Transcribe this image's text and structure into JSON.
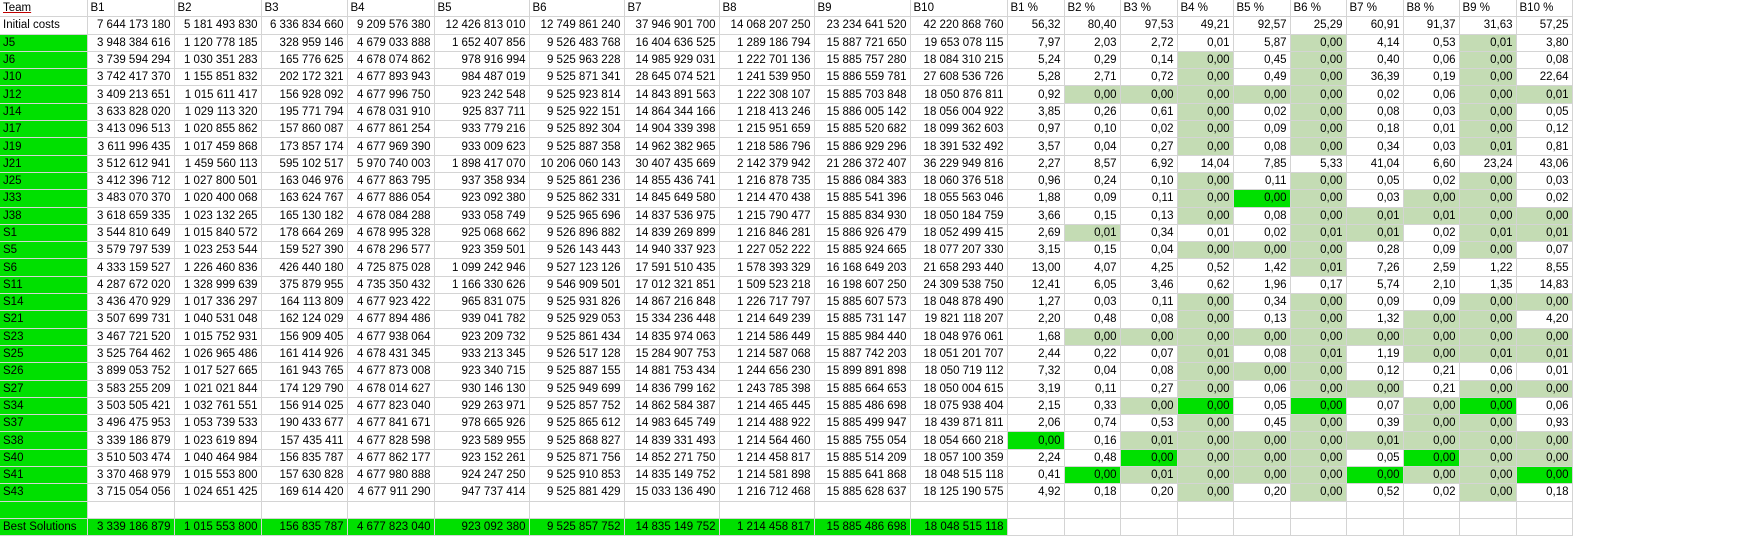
{
  "headers": [
    "Team",
    "B1",
    "B2",
    "B3",
    "B4",
    "B5",
    "B6",
    "B7",
    "B8",
    "B9",
    "B10",
    "B1 %",
    "B2 %",
    "B3 %",
    "B4 %",
    "B5 %",
    "B6 %",
    "B7 %",
    "B8 %",
    "B9 %",
    "B10 %"
  ],
  "initial": {
    "label": "Initial costs",
    "values": [
      "7 644 173 180",
      "5 181 493 830",
      "6 336 834 660",
      "9 209 576 380",
      "12 426 813 010",
      "12 749 861 240",
      "37 946 901 700",
      "14 068 207 250",
      "23 234 641 520",
      "42 220 868 760"
    ],
    "pct": [
      "56,32",
      "80,40",
      "97,53",
      "49,21",
      "92,57",
      "25,29",
      "60,91",
      "91,37",
      "31,63",
      "57,25"
    ]
  },
  "rows": [
    {
      "team": "J5",
      "values": [
        "3 948 384 616",
        "1 120 778 185",
        "328 959 146",
        "4 679 033 888",
        "1 652 407 856",
        "9 526 483 768",
        "16 404 636 525",
        "1 289 186 794",
        "15 887 721 650",
        "19 653 078 115"
      ],
      "pct": [
        "7,97",
        "2,03",
        "2,72",
        "0,01",
        "5,87",
        "0,00",
        "4,14",
        "0,53",
        "0,01",
        "3,80"
      ],
      "hl": [
        "",
        "",
        "",
        "",
        "",
        "p",
        "",
        "",
        "p",
        ""
      ]
    },
    {
      "team": "J6",
      "values": [
        "3 739 594 294",
        "1 030 351 283",
        "165 776 625",
        "4 678 074 862",
        "978 916 994",
        "9 525 963 228",
        "14 985 929 031",
        "1 222 701 136",
        "15 885 757 280",
        "18 084 310 215"
      ],
      "pct": [
        "5,24",
        "0,29",
        "0,14",
        "0,00",
        "0,45",
        "0,00",
        "0,40",
        "0,06",
        "0,00",
        "0,08"
      ],
      "hl": [
        "",
        "",
        "",
        "p",
        "",
        "p",
        "",
        "",
        "p",
        ""
      ]
    },
    {
      "team": "J10",
      "values": [
        "3 742 417 370",
        "1 155 851 832",
        "202 172 321",
        "4 677 893 943",
        "984 487 019",
        "9 525 871 341",
        "28 645 074 521",
        "1 241 539 950",
        "15 886 559 781",
        "27 608 536 726"
      ],
      "pct": [
        "5,28",
        "2,71",
        "0,72",
        "0,00",
        "0,49",
        "0,00",
        "36,39",
        "0,19",
        "0,00",
        "22,64"
      ],
      "hl": [
        "",
        "",
        "",
        "p",
        "",
        "p",
        "",
        "",
        "p",
        ""
      ]
    },
    {
      "team": "J12",
      "values": [
        "3 409 213 651",
        "1 015 611 417",
        "156 928 092",
        "4 677 996 750",
        "923 242 548",
        "9 525 923 814",
        "14 843 891 563",
        "1 222 308 107",
        "15 885 703 848",
        "18 050 876 811"
      ],
      "pct": [
        "0,92",
        "0,00",
        "0,00",
        "0,00",
        "0,00",
        "0,00",
        "0,02",
        "0,06",
        "0,00",
        "0,01"
      ],
      "hl": [
        "",
        "p",
        "p",
        "p",
        "p",
        "p",
        "",
        "",
        "p",
        "p"
      ]
    },
    {
      "team": "J14",
      "values": [
        "3 633 828 020",
        "1 029 113 320",
        "195 771 794",
        "4 678 031 910",
        "925 837 711",
        "9 525 922 151",
        "14 864 344 166",
        "1 218 413 246",
        "15 886 005 142",
        "18 056 004 922"
      ],
      "pct": [
        "3,85",
        "0,26",
        "0,61",
        "0,00",
        "0,02",
        "0,00",
        "0,08",
        "0,03",
        "0,00",
        "0,05"
      ],
      "hl": [
        "",
        "",
        "",
        "p",
        "",
        "p",
        "",
        "",
        "p",
        ""
      ]
    },
    {
      "team": "J17",
      "values": [
        "3 413 096 513",
        "1 020 855 862",
        "157 860 087",
        "4 677 861 254",
        "933 779 216",
        "9 525 892 304",
        "14 904 339 398",
        "1 215 951 659",
        "15 885 520 682",
        "18 099 362 603"
      ],
      "pct": [
        "0,97",
        "0,10",
        "0,02",
        "0,00",
        "0,09",
        "0,00",
        "0,18",
        "0,01",
        "0,00",
        "0,12"
      ],
      "hl": [
        "",
        "",
        "",
        "p",
        "",
        "p",
        "",
        "",
        "p",
        ""
      ]
    },
    {
      "team": "J19",
      "values": [
        "3 611 996 435",
        "1 017 459 868",
        "173 857 174",
        "4 677 969 390",
        "933 009 623",
        "9 525 887 358",
        "14 962 382 965",
        "1 218 586 796",
        "15 886 929 296",
        "18 391 532 492"
      ],
      "pct": [
        "3,57",
        "0,04",
        "0,27",
        "0,00",
        "0,08",
        "0,00",
        "0,34",
        "0,03",
        "0,01",
        "0,81"
      ],
      "hl": [
        "",
        "",
        "",
        "p",
        "",
        "p",
        "",
        "",
        "p",
        ""
      ]
    },
    {
      "team": "J21",
      "values": [
        "3 512 612 941",
        "1 459 560 113",
        "595 102 517",
        "5 970 740 003",
        "1 898 417 070",
        "10 206 060 143",
        "30 407 435 669",
        "2 142 379 942",
        "21 286 372 407",
        "36 229 949 816"
      ],
      "pct": [
        "2,27",
        "8,57",
        "6,92",
        "14,04",
        "7,85",
        "5,33",
        "41,04",
        "6,60",
        "23,24",
        "43,06"
      ],
      "hl": [
        "",
        "",
        "",
        "",
        "",
        "",
        "",
        "",
        "",
        ""
      ]
    },
    {
      "team": "J25",
      "values": [
        "3 412 396 712",
        "1 027 800 501",
        "163 046 976",
        "4 677 863 795",
        "937 358 934",
        "9 525 861 236",
        "14 855 436 741",
        "1 216 878 735",
        "15 886 084 383",
        "18 060 376 518"
      ],
      "pct": [
        "0,96",
        "0,24",
        "0,10",
        "0,00",
        "0,11",
        "0,00",
        "0,05",
        "0,02",
        "0,00",
        "0,03"
      ],
      "hl": [
        "",
        "",
        "",
        "p",
        "",
        "p",
        "",
        "",
        "p",
        ""
      ]
    },
    {
      "team": "J33",
      "values": [
        "3 483 070 370",
        "1 020 400 068",
        "163 624 767",
        "4 677 886 054",
        "923 092 380",
        "9 525 862 331",
        "14 845 649 580",
        "1 214 470 438",
        "15 885 541 396",
        "18 055 563 046"
      ],
      "pct": [
        "1,88",
        "0,09",
        "0,11",
        "0,00",
        "0,00",
        "0,00",
        "0,03",
        "0,00",
        "0,00",
        "0,02"
      ],
      "hl": [
        "",
        "",
        "",
        "p",
        "g",
        "p",
        "",
        "p",
        "p",
        ""
      ]
    },
    {
      "team": "J38",
      "values": [
        "3 618 659 335",
        "1 023 132 265",
        "165 130 182",
        "4 678 084 288",
        "933 058 749",
        "9 525 965 696",
        "14 837 536 975",
        "1 215 790 477",
        "15 885 834 930",
        "18 050 184 759"
      ],
      "pct": [
        "3,66",
        "0,15",
        "0,13",
        "0,00",
        "0,08",
        "0,00",
        "0,01",
        "0,01",
        "0,00",
        "0,00"
      ],
      "hl": [
        "",
        "",
        "",
        "p",
        "",
        "p",
        "p",
        "p",
        "p",
        "p"
      ]
    },
    {
      "team": "S1",
      "values": [
        "3 544 810 649",
        "1 015 840 572",
        "178 664 269",
        "4 678 995 328",
        "925 068 662",
        "9 526 896 882",
        "14 839 269 899",
        "1 216 846 281",
        "15 886 926 479",
        "18 052 499 415"
      ],
      "pct": [
        "2,69",
        "0,01",
        "0,34",
        "0,01",
        "0,02",
        "0,01",
        "0,01",
        "0,02",
        "0,01",
        "0,01"
      ],
      "hl": [
        "",
        "p",
        "",
        "",
        "",
        "p",
        "p",
        "",
        "p",
        "p"
      ]
    },
    {
      "team": "S5",
      "values": [
        "3 579 797 539",
        "1 023 253 544",
        "159 527 390",
        "4 678 296 577",
        "923 359 501",
        "9 526 143 443",
        "14 940 337 923",
        "1 227 052 222",
        "15 885 924 665",
        "18 077 207 330"
      ],
      "pct": [
        "3,15",
        "0,15",
        "0,04",
        "0,00",
        "0,00",
        "0,00",
        "0,28",
        "0,09",
        "0,00",
        "0,07"
      ],
      "hl": [
        "",
        "",
        "",
        "p",
        "p",
        "p",
        "",
        "",
        "p",
        ""
      ]
    },
    {
      "team": "S6",
      "values": [
        "4 333 159 527",
        "1 226 460 836",
        "426 440 180",
        "4 725 875 028",
        "1 099 242 946",
        "9 527 123 126",
        "17 591 510 435",
        "1 578 393 329",
        "16 168 649 203",
        "21 658 293 440"
      ],
      "pct": [
        "13,00",
        "4,07",
        "4,25",
        "0,52",
        "1,42",
        "0,01",
        "7,26",
        "2,59",
        "1,22",
        "8,55"
      ],
      "hl": [
        "",
        "",
        "",
        "",
        "",
        "p",
        "",
        "",
        "",
        ""
      ]
    },
    {
      "team": "S11",
      "values": [
        "4 287 672 020",
        "1 328 999 639",
        "375 879 955",
        "4 735 350 432",
        "1 166 330 626",
        "9 546 909 501",
        "17 012 321 851",
        "1 509 523 218",
        "16 198 607 250",
        "24 309 538 750"
      ],
      "pct": [
        "12,41",
        "6,05",
        "3,46",
        "0,62",
        "1,96",
        "0,17",
        "5,74",
        "2,10",
        "1,35",
        "14,83"
      ],
      "hl": [
        "",
        "",
        "",
        "",
        "",
        "",
        "",
        "",
        "",
        ""
      ]
    },
    {
      "team": "S14",
      "values": [
        "3 436 470 929",
        "1 017 336 297",
        "164 113 809",
        "4 677 923 422",
        "965 831 075",
        "9 525 931 826",
        "14 867 216 848",
        "1 226 717 797",
        "15 885 607 573",
        "18 048 878 490"
      ],
      "pct": [
        "1,27",
        "0,03",
        "0,11",
        "0,00",
        "0,34",
        "0,00",
        "0,09",
        "0,09",
        "0,00",
        "0,00"
      ],
      "hl": [
        "",
        "",
        "",
        "p",
        "",
        "p",
        "",
        "",
        "p",
        "p"
      ]
    },
    {
      "team": "S21",
      "values": [
        "3 507 699 731",
        "1 040 531 048",
        "162 124 029",
        "4 677 894 486",
        "939 041 782",
        "9 525 929 053",
        "15 334 236 448",
        "1 214 649 239",
        "15 885 731 147",
        "19 821 118 207"
      ],
      "pct": [
        "2,20",
        "0,48",
        "0,08",
        "0,00",
        "0,13",
        "0,00",
        "1,32",
        "0,00",
        "0,00",
        "4,20"
      ],
      "hl": [
        "",
        "",
        "",
        "p",
        "",
        "p",
        "",
        "p",
        "p",
        ""
      ]
    },
    {
      "team": "S23",
      "values": [
        "3 467 721 520",
        "1 015 752 931",
        "156 909 405",
        "4 677 938 064",
        "923 209 732",
        "9 525 861 434",
        "14 835 974 063",
        "1 214 586 449",
        "15 885 984 440",
        "18 048 976 061"
      ],
      "pct": [
        "1,68",
        "0,00",
        "0,00",
        "0,00",
        "0,00",
        "0,00",
        "0,00",
        "0,00",
        "0,00",
        "0,00"
      ],
      "hl": [
        "",
        "p",
        "p",
        "p",
        "p",
        "p",
        "p",
        "p",
        "p",
        "p"
      ]
    },
    {
      "team": "S25",
      "values": [
        "3 525 764 462",
        "1 026 965 486",
        "161 414 926",
        "4 678 431 345",
        "933 213 345",
        "9 526 517 128",
        "15 284 907 753",
        "1 214 587 068",
        "15 887 742 203",
        "18 051 201 707"
      ],
      "pct": [
        "2,44",
        "0,22",
        "0,07",
        "0,01",
        "0,08",
        "0,01",
        "1,19",
        "0,00",
        "0,01",
        "0,01"
      ],
      "hl": [
        "",
        "",
        "",
        "p",
        "",
        "p",
        "",
        "p",
        "p",
        "p"
      ]
    },
    {
      "team": "S26",
      "values": [
        "3 899 053 752",
        "1 017 527 665",
        "161 943 765",
        "4 677 873 008",
        "923 340 715",
        "9 525 887 155",
        "14 881 753 434",
        "1 244 656 230",
        "15 899 891 898",
        "18 050 719 112"
      ],
      "pct": [
        "7,32",
        "0,04",
        "0,08",
        "0,00",
        "0,00",
        "0,00",
        "0,12",
        "0,21",
        "0,06",
        "0,01"
      ],
      "hl": [
        "",
        "",
        "",
        "p",
        "p",
        "p",
        "",
        "",
        "",
        ""
      ]
    },
    {
      "team": "S27",
      "values": [
        "3 583 255 209",
        "1 021 021 844",
        "174 129 790",
        "4 678 014 627",
        "930 146 130",
        "9 525 949 699",
        "14 836 799 162",
        "1 243 785 398",
        "15 885 664 653",
        "18 050 004 615"
      ],
      "pct": [
        "3,19",
        "0,11",
        "0,27",
        "0,00",
        "0,06",
        "0,00",
        "0,00",
        "0,21",
        "0,00",
        "0,00"
      ],
      "hl": [
        "",
        "",
        "",
        "p",
        "",
        "p",
        "p",
        "",
        "p",
        "p"
      ]
    },
    {
      "team": "S34",
      "values": [
        "3 503 505 421",
        "1 032 761 551",
        "156 914 025",
        "4 677 823 040",
        "929 263 971",
        "9 525 857 752",
        "14 862 584 387",
        "1 214 465 445",
        "15 885 486 698",
        "18 075 938 404"
      ],
      "pct": [
        "2,15",
        "0,33",
        "0,00",
        "0,00",
        "0,05",
        "0,00",
        "0,07",
        "0,00",
        "0,00",
        "0,06"
      ],
      "hl": [
        "",
        "",
        "p",
        "g",
        "",
        "g",
        "",
        "p",
        "g",
        ""
      ]
    },
    {
      "team": "S37",
      "values": [
        "3 496 475 953",
        "1 053 739 533",
        "190 433 677",
        "4 677 841 671",
        "978 665 926",
        "9 525 865 612",
        "14 983 645 749",
        "1 214 488 922",
        "15 885 499 947",
        "18 439 871 811"
      ],
      "pct": [
        "2,06",
        "0,74",
        "0,53",
        "0,00",
        "0,45",
        "0,00",
        "0,39",
        "0,00",
        "0,00",
        "0,93"
      ],
      "hl": [
        "",
        "",
        "",
        "p",
        "",
        "p",
        "",
        "p",
        "p",
        ""
      ]
    },
    {
      "team": "S38",
      "values": [
        "3 339 186 879",
        "1 023 619 894",
        "157 435 411",
        "4 677 828 598",
        "923 589 955",
        "9 525 868 827",
        "14 839 331 493",
        "1 214 564 460",
        "15 885 755 054",
        "18 054 660 218"
      ],
      "pct": [
        "0,00",
        "0,16",
        "0,01",
        "0,00",
        "0,00",
        "0,00",
        "0,01",
        "0,00",
        "0,00",
        "0,00"
      ],
      "hl": [
        "g",
        "",
        "p",
        "p",
        "p",
        "p",
        "p",
        "p",
        "p",
        "p"
      ]
    },
    {
      "team": "S40",
      "values": [
        "3 510 503 474",
        "1 040 464 984",
        "156 835 787",
        "4 677 862 177",
        "923 152 261",
        "9 525 871 756",
        "14 852 271 750",
        "1 214 458 817",
        "15 885 514 209",
        "18 057 100 359"
      ],
      "pct": [
        "2,24",
        "0,48",
        "0,00",
        "0,00",
        "0,00",
        "0,00",
        "0,05",
        "0,00",
        "0,00",
        "0,00"
      ],
      "hl": [
        "",
        "",
        "g",
        "p",
        "p",
        "p",
        "",
        "g",
        "p",
        "p"
      ]
    },
    {
      "team": "S41",
      "values": [
        "3 370 468 979",
        "1 015 553 800",
        "157 630 828",
        "4 677 980 888",
        "924 247 250",
        "9 525 910 853",
        "14 835 149 752",
        "1 214 581 898",
        "15 885 641 868",
        "18 048 515 118"
      ],
      "pct": [
        "0,41",
        "0,00",
        "0,01",
        "0,00",
        "0,00",
        "0,00",
        "0,00",
        "0,00",
        "0,00",
        "0,00"
      ],
      "hl": [
        "",
        "g",
        "p",
        "p",
        "p",
        "p",
        "g",
        "p",
        "p",
        "g"
      ]
    },
    {
      "team": "S43",
      "values": [
        "3 715 054 056",
        "1 024 651 425",
        "169 614 420",
        "4 677 911 290",
        "947 737 414",
        "9 525 881 429",
        "15 033 136 490",
        "1 216 712 468",
        "15 885 628 637",
        "18 125 190 575"
      ],
      "pct": [
        "4,92",
        "0,18",
        "0,20",
        "0,00",
        "0,20",
        "0,00",
        "0,52",
        "0,02",
        "0,00",
        "0,18"
      ],
      "hl": [
        "",
        "",
        "",
        "p",
        "",
        "p",
        "",
        "",
        "p",
        ""
      ]
    }
  ],
  "best": {
    "label": "Best Solutions",
    "values": [
      "3 339 186 879",
      "1 015 553 800",
      "156 835 787",
      "4 677 823 040",
      "923 092 380",
      "9 525 857 752",
      "14 835 149 752",
      "1 214 458 817",
      "15 885 486 698",
      "18 048 515 118"
    ]
  }
}
